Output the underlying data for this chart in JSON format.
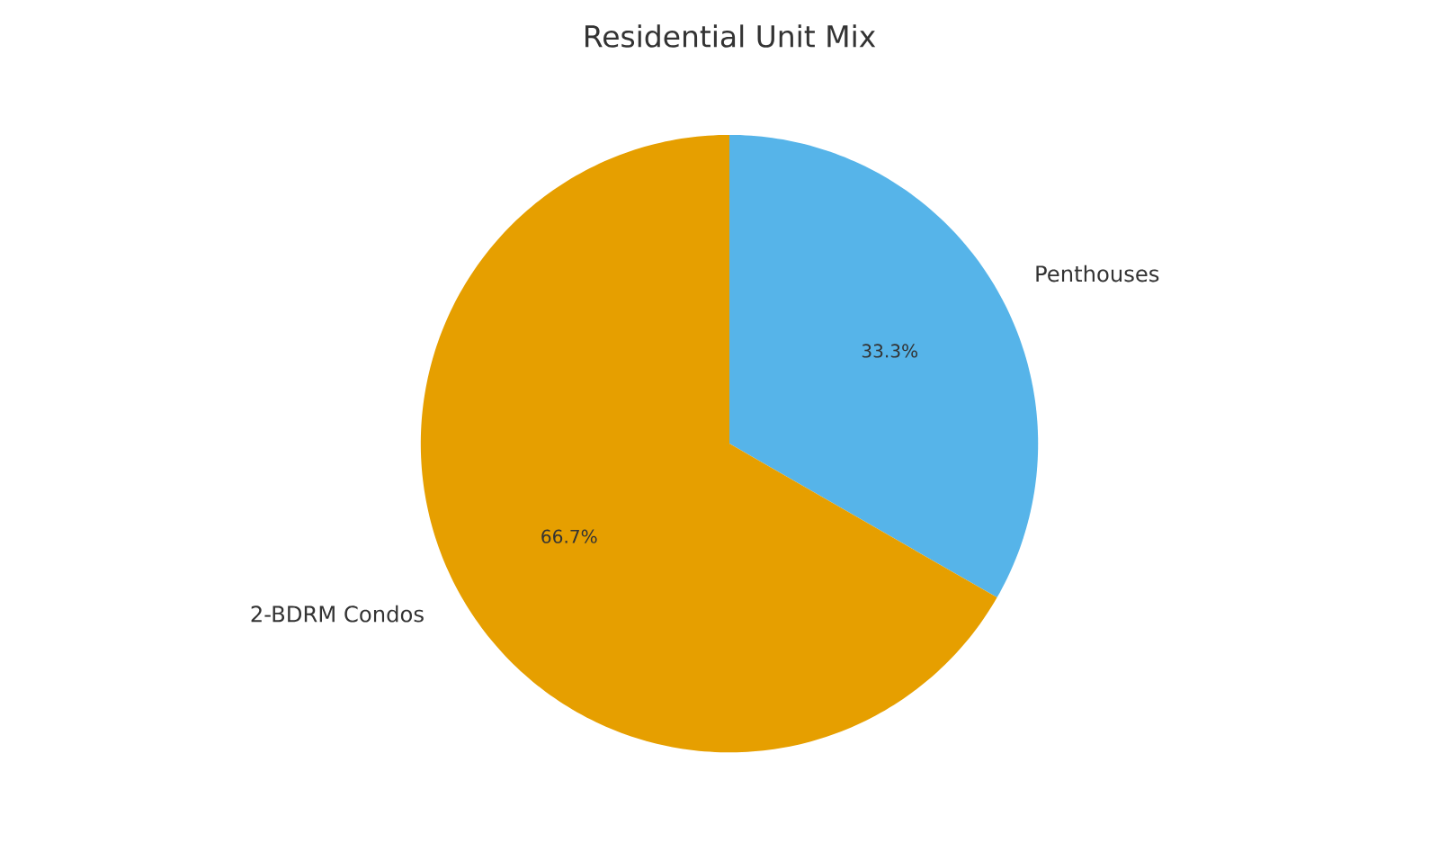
{
  "chart_data": {
    "type": "pie",
    "title": "Residential Unit Mix",
    "categories": [
      "Penthouses",
      "2-BDRM Condos"
    ],
    "values": [
      33.3,
      66.7
    ],
    "colors": [
      "#56b4e9",
      "#e69f00"
    ],
    "value_labels": [
      "33.3%",
      "66.7%"
    ]
  }
}
